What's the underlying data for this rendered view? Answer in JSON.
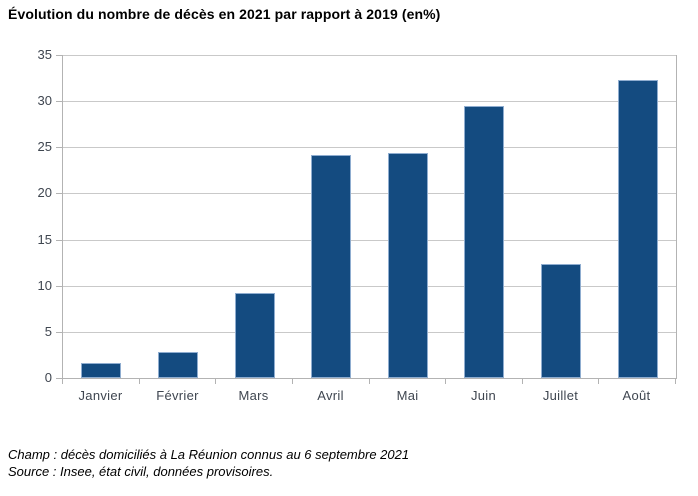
{
  "title": "Évolution du nombre de décès en 2021 par rapport à 2019 (en%)",
  "chart_data": {
    "type": "bar",
    "title": "Évolution du nombre de décès en 2021 par rapport à 2019 (en%)",
    "categories": [
      "Janvier",
      "Février",
      "Mars",
      "Avril",
      "Mai",
      "Juin",
      "Juillet",
      "Août"
    ],
    "values": [
      1.6,
      2.8,
      9.2,
      24.2,
      24.4,
      29.5,
      12.4,
      32.3
    ],
    "xlabel": "",
    "ylabel": "",
    "ylim": [
      0,
      35
    ],
    "yticks": [
      0,
      5,
      10,
      15,
      20,
      25,
      30,
      35
    ],
    "grid": true,
    "legend": "none"
  },
  "footer": {
    "line1": "Champ : décès domiciliés à La Réunion connus au 6 septembre 2021",
    "line2": "Source : Insee, état civil, données provisoires."
  },
  "colors": {
    "bar": "#144b80",
    "bar_edge": "#8fadd0",
    "grid": "#c9c9c9",
    "axis": "#b3b3b3",
    "tick_text": "#3f4650",
    "title_text": "#000000"
  }
}
